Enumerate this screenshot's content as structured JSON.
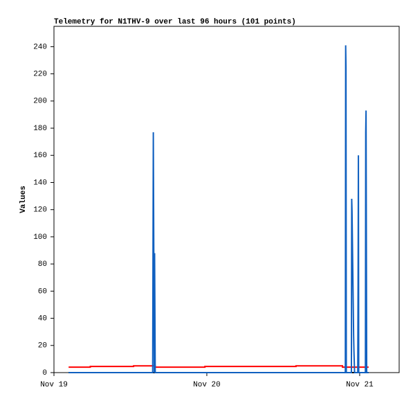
{
  "chart_data": {
    "type": "line",
    "title": "Telemetry for N1THV-9 over last 96 hours (101 points)",
    "y_label": "Values",
    "xlim": [
      0,
      54.2
    ],
    "xticks": [
      {
        "value": 0,
        "label": "Nov 19"
      },
      {
        "value": 24,
        "label": "Nov 20"
      },
      {
        "value": 48,
        "label": "Nov 21"
      }
    ],
    "ylim": [
      0,
      255
    ],
    "yticks": [
      0,
      20,
      40,
      60,
      80,
      100,
      120,
      140,
      160,
      180,
      200,
      220,
      240
    ],
    "series": [
      {
        "color": "#ff0000",
        "x": [
          2.3,
          5.7,
          5.7,
          12.5,
          12.5,
          15.9,
          15.9,
          23.7,
          23.7,
          38,
          38,
          45.3,
          45.3,
          49.4
        ],
        "values": [
          4,
          4,
          4.5,
          4.5,
          5,
          5,
          4,
          4,
          4.5,
          4.5,
          5,
          5,
          4,
          4
        ]
      },
      {
        "color": "#000000",
        "x": [
          2.3,
          49.4
        ],
        "values": [
          0,
          0
        ]
      },
      {
        "color": "#1060c0",
        "x": [
          2.3,
          15.5,
          15.6,
          15.75,
          15.8,
          15.9,
          45.75,
          45.8,
          45.85,
          45.9,
          46.7,
          46.75,
          46.8,
          46.85,
          46.9,
          46.95,
          47.0,
          47.05,
          47.1,
          47.2,
          47.7,
          47.75,
          47.8,
          47.85,
          48.9,
          48.95,
          49.0,
          49.05,
          49.1,
          49.4
        ],
        "values": [
          0,
          0,
          177,
          0,
          88,
          0,
          0,
          241,
          225,
          0,
          0,
          128,
          119,
          101,
          82,
          64,
          46,
          27,
          16,
          0,
          0,
          64,
          160,
          0,
          0,
          177,
          193,
          97,
          0,
          0
        ]
      }
    ]
  }
}
